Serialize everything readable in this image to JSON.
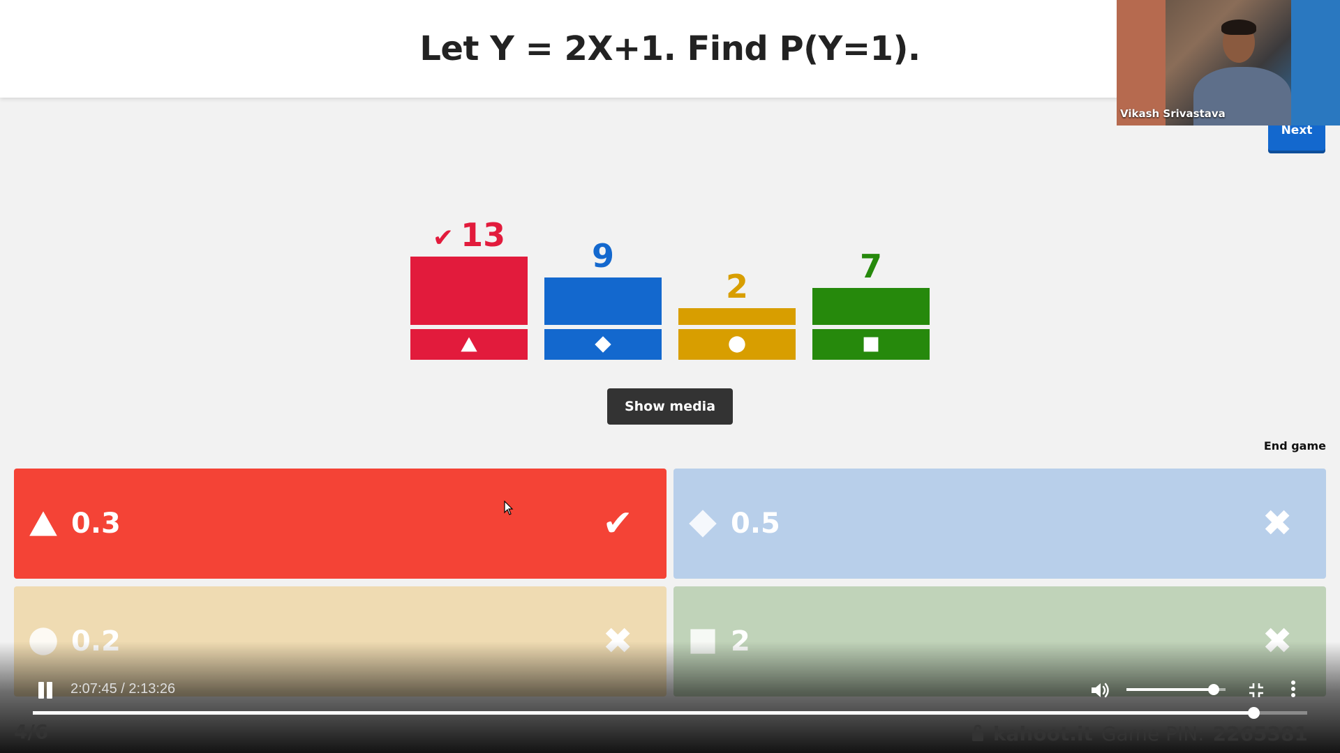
{
  "question": {
    "text": "Let Y = 2X+1. Find P(Y=1)."
  },
  "presenter": {
    "name": "Vikash Srivastava"
  },
  "controls": {
    "next_label": "Next",
    "show_media_label": "Show media",
    "end_game_label": "End game"
  },
  "colors": {
    "red": "#e21b3c",
    "blue": "#1368ce",
    "orange": "#d89e00",
    "green": "#26890c"
  },
  "chart_data": {
    "type": "bar",
    "categories": [
      "triangle",
      "diamond",
      "circle",
      "square"
    ],
    "values": [
      13,
      9,
      2,
      7
    ],
    "correct": "triangle",
    "ylim": [
      0,
      13
    ]
  },
  "answers": [
    {
      "shape": "triangle-icon",
      "label": "0.3",
      "correct": true,
      "color": "#f44336"
    },
    {
      "shape": "diamond-icon",
      "label": "0.5",
      "correct": false,
      "color": "#b8cfea"
    },
    {
      "shape": "circle-icon",
      "label": "0.2",
      "correct": false,
      "color": "#efdbb2"
    },
    {
      "shape": "square-icon",
      "label": "2",
      "correct": false,
      "color": "#c0d3b9"
    }
  ],
  "player": {
    "time_label": "2:07:45 / 2:13:26",
    "progress": 0.9578,
    "volume": 0.88
  },
  "footer": {
    "question_counter": "4/6",
    "brand": "kahoot.it",
    "pin_label": "Game PIN:",
    "pin_value": "2265381"
  }
}
